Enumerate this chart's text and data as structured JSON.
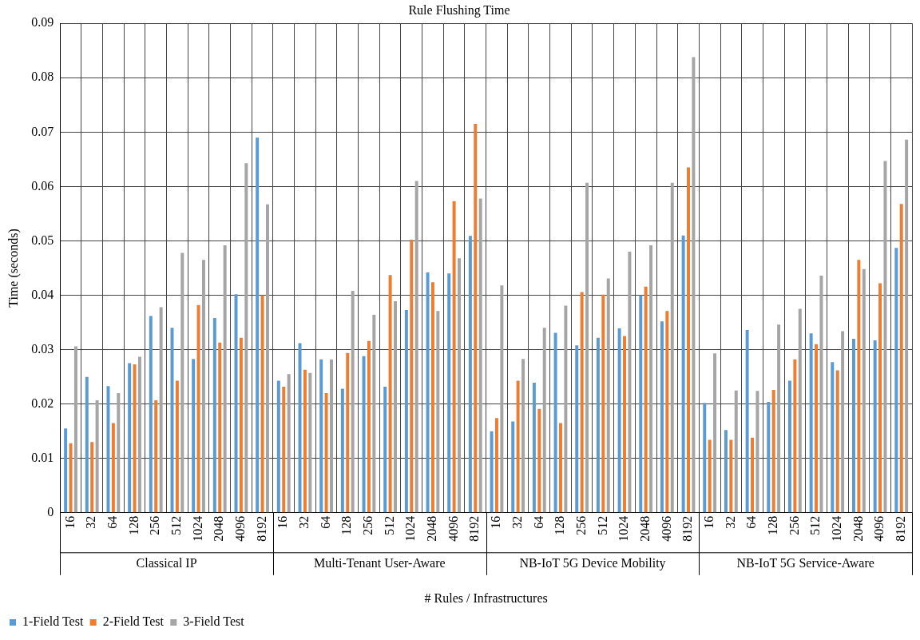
{
  "chart_data": {
    "type": "bar",
    "title": "Rule Flushing Time",
    "xlabel": "# Rules / Infrastructures",
    "ylabel": "Time (seconds)",
    "categories": [
      "16",
      "32",
      "64",
      "128",
      "256",
      "512",
      "1024",
      "2048",
      "4096",
      "8192",
      "16",
      "32",
      "64",
      "128",
      "256",
      "512",
      "1024",
      "2048",
      "4096",
      "8192",
      "16",
      "32",
      "64",
      "128",
      "256",
      "512",
      "1024",
      "2048",
      "4096",
      "8192",
      "16",
      "32",
      "64",
      "128",
      "256",
      "512",
      "1024",
      "2048",
      "4096",
      "8192"
    ],
    "annotations": [
      "Classical IP",
      "Multi-Tenant User-Aware",
      "NB-IoT 5G Device Mobility",
      "NB-IoT 5G Service-Aware"
    ],
    "series": [
      {
        "name": "1-Field Test",
        "color": "#5b9bd5",
        "values": [
          0.0155,
          0.025,
          0.0233,
          0.0275,
          0.0362,
          0.034,
          0.0283,
          0.0358,
          0.0402,
          0.069,
          0.0243,
          0.0312,
          0.0282,
          0.0228,
          0.0288,
          0.0232,
          0.0373,
          0.0442,
          0.044,
          0.0509,
          0.015,
          0.0168,
          0.0239,
          0.0331,
          0.0308,
          0.0322,
          0.0339,
          0.04,
          0.0352,
          0.051,
          0.0202,
          0.0152,
          0.0336,
          0.0204,
          0.0243,
          0.033,
          0.0277,
          0.032,
          0.0317,
          0.0487
        ]
      },
      {
        "name": "2-Field Test",
        "color": "#ed7d31",
        "values": [
          0.0128,
          0.013,
          0.0165,
          0.0273,
          0.0207,
          0.0243,
          0.0382,
          0.0313,
          0.0322,
          0.04,
          0.0232,
          0.0263,
          0.022,
          0.0294,
          0.0316,
          0.0437,
          0.0502,
          0.0424,
          0.0573,
          0.0715,
          0.0174,
          0.0243,
          0.0191,
          0.0165,
          0.0406,
          0.0401,
          0.0325,
          0.0416,
          0.0371,
          0.0635,
          0.0134,
          0.0134,
          0.0138,
          0.0226,
          0.0282,
          0.031,
          0.0262,
          0.0465,
          0.0422,
          0.0568
        ]
      },
      {
        "name": "3-Field Test",
        "color": "#a5a5a5",
        "values": [
          0.0306,
          0.0207,
          0.022,
          0.0287,
          0.0378,
          0.0478,
          0.0465,
          0.0492,
          0.0643,
          0.0567,
          0.0255,
          0.0257,
          0.0282,
          0.0408,
          0.0364,
          0.0389,
          0.061,
          0.0371,
          0.0468,
          0.0578,
          0.0418,
          0.0283,
          0.034,
          0.0381,
          0.0607,
          0.0431,
          0.048,
          0.0492,
          0.0607,
          0.0838,
          0.0293,
          0.0225,
          0.0224,
          0.0346,
          0.0375,
          0.0436,
          0.0334,
          0.0448,
          0.0647,
          0.0686
        ]
      }
    ],
    "ylim": [
      0,
      0.09
    ],
    "yticks": [
      0,
      0.01,
      0.02,
      0.03,
      0.04,
      0.05,
      0.06,
      0.07,
      0.08,
      0.09
    ],
    "grid": true,
    "legend": "bottom left"
  }
}
